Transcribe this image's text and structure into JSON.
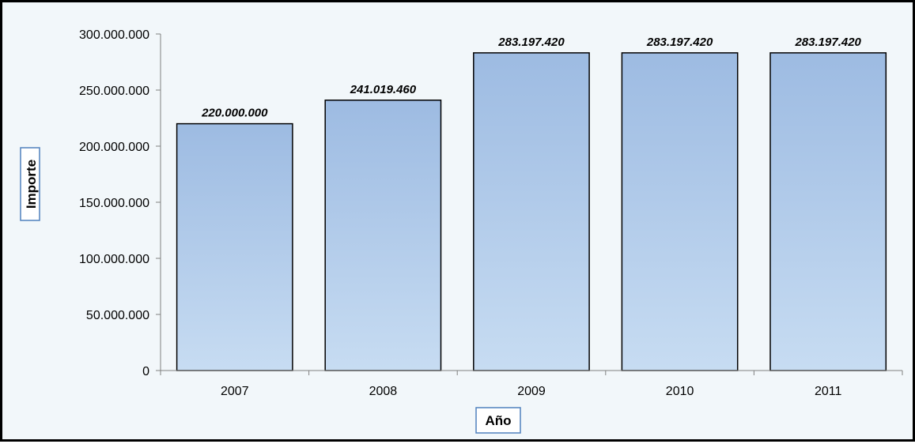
{
  "chart_data": {
    "type": "bar",
    "title": "",
    "xlabel": "Año",
    "ylabel": "Importe",
    "categories": [
      "2007",
      "2008",
      "2009",
      "2010",
      "2011"
    ],
    "values": [
      220000000,
      241019460,
      283197420,
      283197420,
      283197420
    ],
    "value_labels": [
      "220.000.000",
      "241.019.460",
      "283.197.420",
      "283.197.420",
      "283.197.420"
    ],
    "ylim": [
      0,
      300000000
    ],
    "yticks": [
      0,
      50000000,
      100000000,
      150000000,
      200000000,
      250000000,
      300000000
    ],
    "ytick_labels": [
      "0",
      "50.000.000",
      "100.000.000",
      "150.000.000",
      "200.000.000",
      "250.000.000",
      "300.000.000"
    ],
    "grid": false,
    "legend": "none",
    "colors": {
      "bar_top": "#9dbbe2",
      "bar_bottom": "#c7dcf2",
      "bar_outline": "#000000",
      "background": "#f2f7fa",
      "axis": "#808080",
      "axis_title_border": "#4f81bd"
    }
  }
}
